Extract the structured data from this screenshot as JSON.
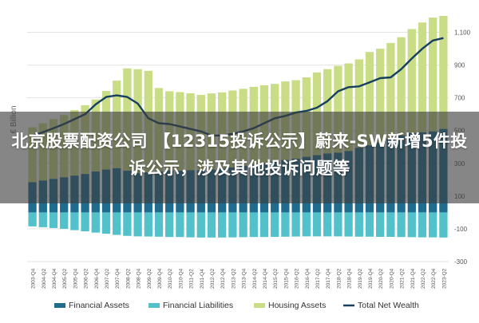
{
  "headline": "北京股票配资公司 【12315投诉公示】蔚来-SW新增5件投诉公示，涉及其他投诉问题等",
  "chart_data": {
    "type": "bar",
    "ylabel": "€ Billion",
    "ylim": [
      -300,
      1200
    ],
    "yticks": [
      1100,
      900,
      700,
      500,
      300,
      100,
      -100,
      -300
    ],
    "grid": true,
    "legend_position": "bottom",
    "quarters": [
      "2003-Q4",
      "2004-Q2",
      "2004-Q4",
      "2005-Q2",
      "2005-Q4",
      "2006-Q2",
      "2006-Q4",
      "2007-Q2",
      "2007-Q4",
      "2008-Q2",
      "2008-Q4",
      "2009-Q2",
      "2009-Q4",
      "2010-Q2",
      "2010-Q4",
      "2011-Q2",
      "2011-Q4",
      "2012-Q2",
      "2012-Q4",
      "2013-Q2",
      "2013-Q4",
      "2014-Q2",
      "2014-Q4",
      "2015-Q2",
      "2015-Q4",
      "2016-Q2",
      "2016-Q4",
      "2017-Q2",
      "2017-Q4",
      "2018-Q2",
      "2018-Q4",
      "2019-Q2",
      "2019-Q4",
      "2020-Q2",
      "2020-Q4",
      "2021-Q2",
      "2021-Q4",
      "2022-Q2",
      "2022-Q4",
      "2023-Q2"
    ],
    "colors": {
      "Financial Assets": "#1f6c8f",
      "Financial Liabilities": "#52c1c9",
      "Housing Assets": "#c9dc86",
      "Total Net Wealth": "#173f5f"
    },
    "series": [
      {
        "name": "Financial Assets",
        "kind": "bar",
        "values": [
          185,
          195,
          205,
          215,
          225,
          235,
          250,
          262,
          270,
          255,
          240,
          245,
          250,
          255,
          255,
          258,
          258,
          262,
          268,
          275,
          285,
          292,
          302,
          310,
          320,
          328,
          340,
          350,
          360,
          365,
          375,
          395,
          410,
          425,
          450,
          470,
          485,
          490,
          495,
          510
        ]
      },
      {
        "name": "Housing Assets",
        "kind": "bar",
        "values": [
          335,
          350,
          365,
          380,
          400,
          420,
          440,
          480,
          535,
          625,
          635,
          620,
          510,
          485,
          480,
          470,
          460,
          465,
          465,
          470,
          470,
          475,
          475,
          475,
          480,
          480,
          485,
          505,
          515,
          530,
          535,
          540,
          570,
          575,
          585,
          600,
          635,
          670,
          695,
          690
        ]
      },
      {
        "name": "Financial Liabilities",
        "kind": "bar",
        "values": [
          -85,
          -90,
          -95,
          -100,
          -108,
          -115,
          -123,
          -130,
          -137,
          -143,
          -146,
          -147,
          -148,
          -150,
          -150,
          -152,
          -153,
          -153,
          -153,
          -152,
          -151,
          -150,
          -150,
          -149,
          -148,
          -147,
          -146,
          -146,
          -146,
          -146,
          -147,
          -148,
          -148,
          -149,
          -149,
          -150,
          -151,
          -152,
          -152,
          -153
        ]
      },
      {
        "name": "Total Net Wealth",
        "kind": "line",
        "values": [
          470,
          490,
          515,
          540,
          570,
          600,
          660,
          705,
          715,
          705,
          665,
          575,
          545,
          540,
          525,
          510,
          495,
          470,
          470,
          480,
          495,
          515,
          545,
          575,
          590,
          610,
          620,
          640,
          680,
          740,
          765,
          770,
          795,
          820,
          825,
          875,
          940,
          1000,
          1050,
          1065
        ]
      }
    ]
  }
}
